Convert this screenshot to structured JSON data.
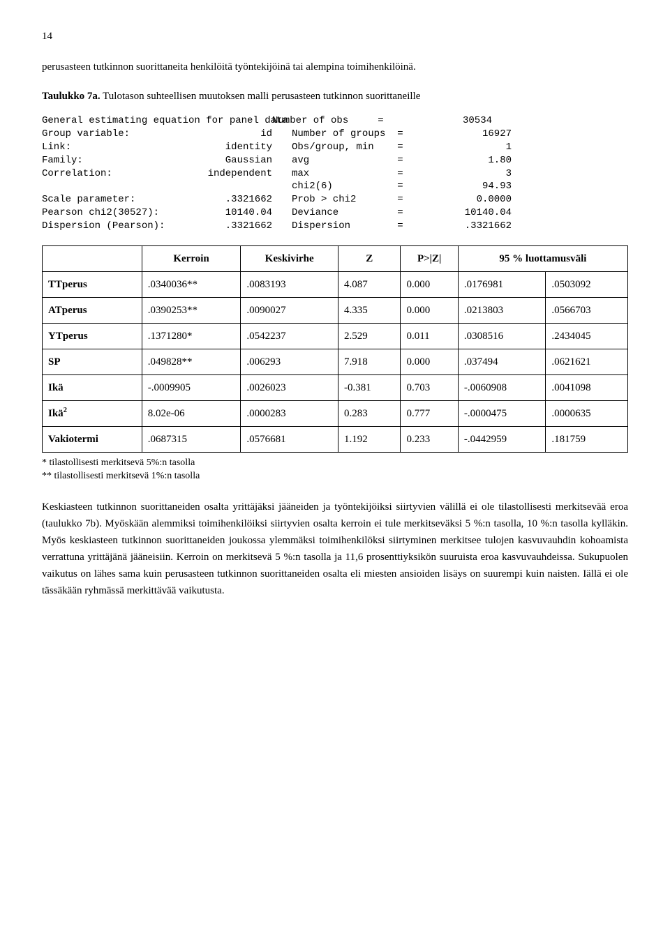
{
  "page_number": "14",
  "intro_para": "perusasteen tutkinnon suorittaneita henkilöitä työntekijöinä tai alempina toimihenkilöinä.",
  "table_caption": {
    "label": "Taulukko 7a.",
    "text": "Tulotason suhteellisen muutoksen malli perusasteen tutkinnon suorittaneille"
  },
  "mono": {
    "rows": [
      [
        "General estimating equation for panel data",
        "",
        "Number of obs     =",
        "30534"
      ],
      [
        "Group variable:",
        "id",
        "Number of groups  =",
        "16927"
      ],
      [
        "Link:",
        "identity",
        "Obs/group, min    =",
        "1"
      ],
      [
        "Family:",
        "Gaussian",
        "avg               =",
        "1.80"
      ],
      [
        "Correlation:",
        "independent",
        "max               =",
        "3"
      ],
      [
        "",
        "",
        "chi2(6)           =",
        "94.93"
      ],
      [
        "Scale parameter:",
        ".3321662",
        "Prob > chi2       =",
        "0.0000"
      ],
      [
        "Pearson chi2(30527):",
        "10140.04",
        "Deviance          =",
        "10140.04"
      ],
      [
        "Dispersion (Pearson):",
        ".3321662",
        "Dispersion        =",
        ".3321662"
      ]
    ]
  },
  "reg_table": {
    "headers": [
      "",
      "Kerroin",
      "Keskivirhe",
      "Z",
      "P>|Z|",
      "95 % luottamusväli"
    ],
    "rows": [
      [
        "TTperus",
        ".0340036**",
        ".0083193",
        "4.087",
        "0.000",
        ".0176981",
        ".0503092"
      ],
      [
        "ATperus",
        ".0390253**",
        ".0090027",
        "4.335",
        "0.000",
        ".0213803",
        ".0566703"
      ],
      [
        "YTperus",
        ".1371280*",
        ".0542237",
        "2.529",
        "0.011",
        ".0308516",
        ".2434045"
      ],
      [
        "SP",
        ".049828**",
        ".006293",
        "7.918",
        "0.000",
        ".037494",
        ".0621621"
      ],
      [
        "Ikä",
        "-.0009905",
        ".0026023",
        "-0.381",
        "0.703",
        "-.0060908",
        ".0041098"
      ],
      [
        "Ikä2",
        "8.02e-06",
        ".0000283",
        "0.283",
        "0.777",
        "-.0000475",
        ".0000635"
      ],
      [
        "Vakiotermi",
        ".0687315",
        ".0576681",
        "1.192",
        "0.233",
        "-.0442959",
        ".181759"
      ]
    ]
  },
  "footnote1": "*  tilastollisesti merkitsevä 5%:n tasolla",
  "footnote2": "** tilastollisesti merkitsevä 1%:n tasolla",
  "body_para": "Keskiasteen tutkinnon suorittaneiden osalta yrittäjäksi jääneiden ja työntekijöiksi siirtyvien välillä ei ole tilastollisesti merkitsevää eroa (taulukko 7b). Myöskään alemmiksi toimihenkilöiksi siirtyvien osalta kerroin ei tule merkitseväksi 5 %:n tasolla, 10 %:n tasolla kylläkin. Myös keskiasteen tutkinnon suorittaneiden joukossa ylemmäksi toimihenkilöksi siirtyminen merkitsee tulojen kasvuvauhdin kohoamista verrattuna yrittäjänä jääneisiin. Kerroin on merkitsevä 5 %:n tasolla ja 11,6 prosenttiyksikön suuruista eroa kasvuvauhdeissa. Sukupuolen vaikutus on lähes sama kuin perusasteen tutkinnon suorittaneiden osalta eli miesten ansioiden lisäys on suurempi kuin naisten. Iällä ei ole tässäkään ryhmässä merkittävää vaikutusta."
}
